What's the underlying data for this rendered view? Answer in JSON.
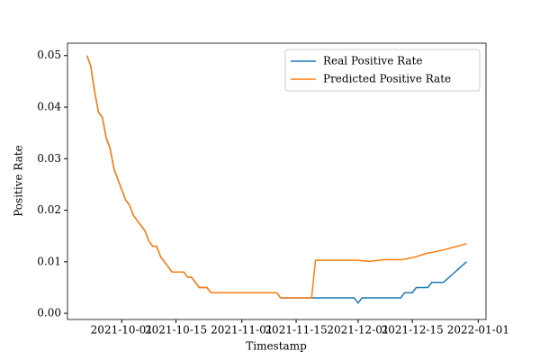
{
  "chart_data": {
    "type": "line",
    "x_label": "Timestamp",
    "y_label": "Positive Rate",
    "x": [
      "2021-09-22",
      "2021-09-23",
      "2021-09-24",
      "2021-09-25",
      "2021-09-26",
      "2021-09-27",
      "2021-09-28",
      "2021-09-29",
      "2021-09-30",
      "2021-10-01",
      "2021-10-02",
      "2021-10-03",
      "2021-10-04",
      "2021-10-05",
      "2021-10-06",
      "2021-10-07",
      "2021-10-08",
      "2021-10-09",
      "2021-10-10",
      "2021-10-11",
      "2021-10-12",
      "2021-10-13",
      "2021-10-14",
      "2021-10-17",
      "2021-10-18",
      "2021-10-19",
      "2021-10-20",
      "2021-10-21",
      "2021-10-23",
      "2021-10-24",
      "2021-11-10",
      "2021-11-11",
      "2021-11-19",
      "2021-11-20",
      "2021-11-30",
      "2021-12-01",
      "2021-12-02",
      "2021-12-04",
      "2021-12-08",
      "2021-12-12",
      "2021-12-13",
      "2021-12-15",
      "2021-12-16",
      "2021-12-19",
      "2021-12-20",
      "2021-12-23",
      "2021-12-29"
    ],
    "series": [
      {
        "name": "Real Positive Rate",
        "color": "#1f77b4",
        "values": [
          0.05,
          0.048,
          0.043,
          0.039,
          0.038,
          0.034,
          0.032,
          0.028,
          0.026,
          0.024,
          0.022,
          0.021,
          0.019,
          0.018,
          0.017,
          0.016,
          0.014,
          0.013,
          0.013,
          0.011,
          0.01,
          0.009,
          0.008,
          0.008,
          0.007,
          0.007,
          0.006,
          0.005,
          0.005,
          0.004,
          0.004,
          0.003,
          0.003,
          0.003,
          0.003,
          0.002,
          0.003,
          0.003,
          0.003,
          0.003,
          0.004,
          0.004,
          0.005,
          0.005,
          0.006,
          0.006,
          0.01
        ]
      },
      {
        "name": "Predicted Positive Rate",
        "color": "#ff7f0e",
        "values": [
          0.05,
          0.048,
          0.043,
          0.039,
          0.038,
          0.034,
          0.032,
          0.028,
          0.026,
          0.024,
          0.022,
          0.021,
          0.019,
          0.018,
          0.017,
          0.016,
          0.014,
          0.013,
          0.013,
          0.011,
          0.01,
          0.009,
          0.008,
          0.008,
          0.007,
          0.007,
          0.006,
          0.005,
          0.005,
          0.004,
          0.004,
          0.003,
          0.003,
          0.0103,
          0.0103,
          0.0103,
          0.0102,
          0.0101,
          0.0104,
          0.0104,
          0.0105,
          0.0108,
          0.011,
          0.0117,
          0.0118,
          0.0123,
          0.0135
        ]
      }
    ],
    "xlim": [
      "2021-09-17",
      "2022-01-03"
    ],
    "xticks": [
      "2021-10-01",
      "2021-10-15",
      "2021-11-01",
      "2021-11-15",
      "2021-12-01",
      "2021-12-15",
      "2022-01-01"
    ],
    "ylim": [
      -0.0012,
      0.0524
    ],
    "yticks": [
      {
        "value": 0,
        "label": "0.00"
      },
      {
        "value": 0.01,
        "label": "0.01"
      },
      {
        "value": 0.02,
        "label": "0.02"
      },
      {
        "value": 0.03,
        "label": "0.03"
      },
      {
        "value": 0.04,
        "label": "0.04"
      },
      {
        "value": 0.05,
        "label": "0.05"
      }
    ],
    "legend": "upper right"
  }
}
